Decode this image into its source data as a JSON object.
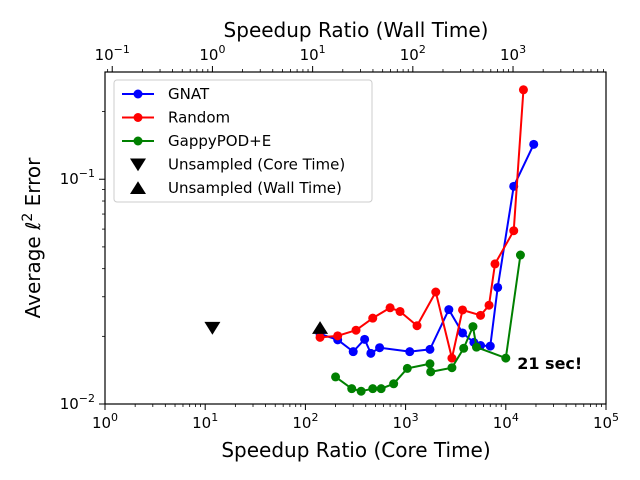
{
  "chart_data": {
    "type": "scatter",
    "xlabel": "Speedup Ratio (Core Time)",
    "ylabel": "Average ℓ² Error",
    "ylabel_base": "Average ℓ",
    "ylabel_sup": "2",
    "ylabel_tail": " Error",
    "x2label": "Speedup Ratio (Wall Time)",
    "xscale": "log",
    "yscale": "log",
    "xlim": [
      1,
      100000
    ],
    "ylim": [
      0.01,
      0.3
    ],
    "x2lim": [
      0.0847,
      8470
    ],
    "grid": false,
    "legend_position": "top-left",
    "xticks": [
      {
        "value": 1,
        "base": "10",
        "exp": "0"
      },
      {
        "value": 10,
        "base": "10",
        "exp": "1"
      },
      {
        "value": 100,
        "base": "10",
        "exp": "2"
      },
      {
        "value": 1000,
        "base": "10",
        "exp": "3"
      },
      {
        "value": 10000,
        "base": "10",
        "exp": "4"
      },
      {
        "value": 100000,
        "base": "10",
        "exp": "5"
      }
    ],
    "x2ticks": [
      {
        "value": 0.1,
        "base": "10",
        "exp": "−1"
      },
      {
        "value": 1,
        "base": "10",
        "exp": "0"
      },
      {
        "value": 10,
        "base": "10",
        "exp": "1"
      },
      {
        "value": 100,
        "base": "10",
        "exp": "2"
      },
      {
        "value": 1000,
        "base": "10",
        "exp": "3"
      }
    ],
    "yticks": [
      {
        "value": 0.01,
        "base": "10",
        "exp": "−2"
      },
      {
        "value": 0.1,
        "base": "10",
        "exp": "−1"
      }
    ],
    "series": [
      {
        "name": "GNAT",
        "color": "#0000ff",
        "marker": "circle",
        "x": [
          140,
          210,
          300,
          390,
          450,
          550,
          1100,
          1750,
          2700,
          3700,
          4800,
          5600,
          7000,
          8300,
          12000,
          19000
        ],
        "y": [
          0.0205,
          0.0193,
          0.0171,
          0.0194,
          0.0168,
          0.0178,
          0.0171,
          0.0175,
          0.0263,
          0.0207,
          0.0188,
          0.0182,
          0.0181,
          0.033,
          0.093,
          0.143
        ]
      },
      {
        "name": "Random",
        "color": "#ff0000",
        "marker": "circle",
        "x": [
          140,
          210,
          320,
          470,
          700,
          880,
          1300,
          2000,
          2900,
          3700,
          5600,
          6800,
          7800,
          12000,
          15000
        ],
        "y": [
          0.0198,
          0.0201,
          0.0213,
          0.0241,
          0.0268,
          0.0258,
          0.0223,
          0.0315,
          0.016,
          0.0262,
          0.0248,
          0.0275,
          0.042,
          0.059,
          0.25
        ]
      },
      {
        "name": "GappyPOD+E",
        "color": "#008000",
        "marker": "circle",
        "x": [
          200,
          290,
          360,
          470,
          570,
          760,
          1040,
          1750,
          1780,
          2900,
          3800,
          4700,
          5100,
          10000,
          14000
        ],
        "y": [
          0.0132,
          0.0117,
          0.0114,
          0.0117,
          0.0117,
          0.0123,
          0.0144,
          0.0151,
          0.0139,
          0.0145,
          0.0177,
          0.0221,
          0.0179,
          0.016,
          0.046
        ]
      },
      {
        "name": "Unsampled (Core Time)",
        "color": "#000000",
        "marker": "triangle-down",
        "x": [
          11.8
        ],
        "y": [
          0.0218
        ]
      },
      {
        "name": "Unsampled (Wall Time)",
        "color": "#000000",
        "marker": "triangle-up",
        "x": [
          140
        ],
        "y": [
          0.0218
        ]
      }
    ],
    "annotations": [
      {
        "text": "21 sec!",
        "x": 13000,
        "y": 0.0155
      }
    ]
  }
}
